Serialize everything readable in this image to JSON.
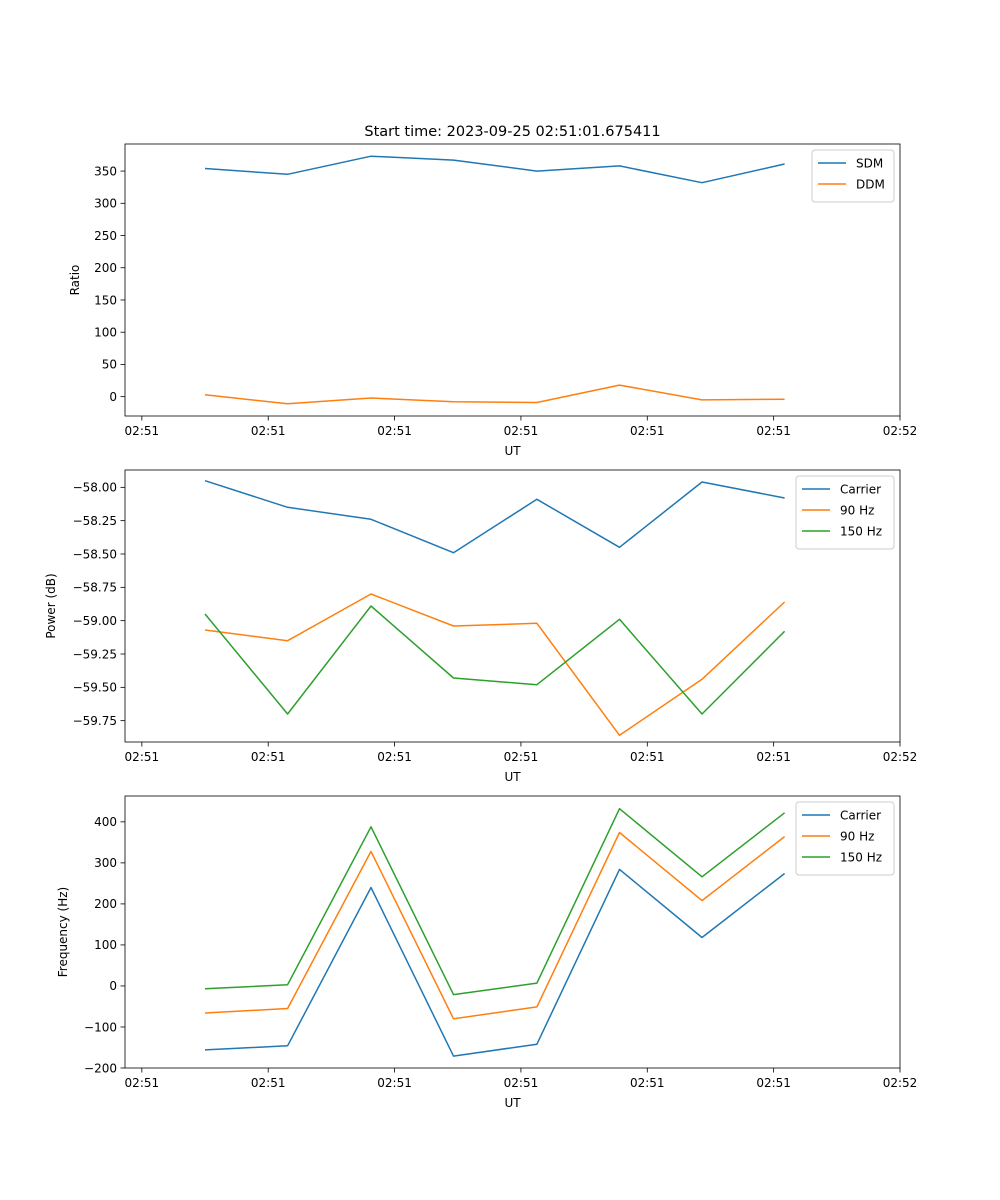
{
  "figure_title": "Start time: 2023-09-25 02:51:01.675411",
  "chart_data": [
    {
      "type": "line",
      "title": "Start time: 2023-09-25 02:51:01.675411",
      "xlabel": "UT",
      "ylabel": "Ratio",
      "xlim": [
        -0.2,
        9.0
      ],
      "ylim": [
        -30,
        392
      ],
      "xticks": [
        0,
        1.5,
        3,
        4.5,
        6,
        7.5,
        9
      ],
      "xtick_labels": [
        "02:51",
        "02:51",
        "02:51",
        "02:51",
        "02:51",
        "02:51",
        "02:52"
      ],
      "yticks": [
        0,
        50,
        100,
        150,
        200,
        250,
        300,
        350
      ],
      "ytick_labels": [
        "0",
        "50",
        "100",
        "150",
        "200",
        "250",
        "300",
        "350"
      ],
      "legend": "top-right",
      "x": [
        0.75,
        1.73,
        2.72,
        3.7,
        4.69,
        5.67,
        6.65,
        7.63
      ],
      "series": [
        {
          "name": "SDM",
          "color": "#1f77b4",
          "values": [
            354,
            345,
            373,
            367,
            350,
            358,
            332,
            361
          ]
        },
        {
          "name": "DDM",
          "color": "#ff7f0e",
          "values": [
            3,
            -11,
            -2,
            -8,
            -9,
            18,
            -5,
            -4
          ]
        }
      ]
    },
    {
      "type": "line",
      "title": "",
      "xlabel": "UT",
      "ylabel": "Power (dB)",
      "xlim": [
        -0.2,
        9.0
      ],
      "ylim": [
        -59.91,
        -57.87
      ],
      "xticks": [
        0,
        1.5,
        3,
        4.5,
        6,
        7.5,
        9
      ],
      "xtick_labels": [
        "02:51",
        "02:51",
        "02:51",
        "02:51",
        "02:51",
        "02:51",
        "02:52"
      ],
      "yticks": [
        -58.0,
        -58.25,
        -58.5,
        -58.75,
        -59.0,
        -59.25,
        -59.5,
        -59.75
      ],
      "ytick_labels": [
        "−58.00",
        "−58.25",
        "−58.50",
        "−58.75",
        "−59.00",
        "−59.25",
        "−59.50",
        "−59.75"
      ],
      "legend": "top-right",
      "x": [
        0.75,
        1.73,
        2.72,
        3.7,
        4.69,
        5.67,
        6.65,
        7.63
      ],
      "series": [
        {
          "name": "Carrier",
          "color": "#1f77b4",
          "values": [
            -57.95,
            -58.15,
            -58.24,
            -58.49,
            -58.09,
            -58.45,
            -57.96,
            -58.08
          ]
        },
        {
          "name": "90 Hz",
          "color": "#ff7f0e",
          "values": [
            -59.07,
            -59.15,
            -58.8,
            -59.04,
            -59.02,
            -59.86,
            -59.44,
            -58.86
          ]
        },
        {
          "name": "150 Hz",
          "color": "#2ca02c",
          "values": [
            -58.95,
            -59.7,
            -58.89,
            -59.43,
            -59.48,
            -58.99,
            -59.7,
            -59.08
          ]
        }
      ]
    },
    {
      "type": "line",
      "title": "",
      "xlabel": "UT",
      "ylabel": "Frequency (Hz)",
      "xlim": [
        -0.2,
        9.0
      ],
      "ylim": [
        -200,
        463
      ],
      "xticks": [
        0,
        1.5,
        3,
        4.5,
        6,
        7.5,
        9
      ],
      "xtick_labels": [
        "02:51",
        "02:51",
        "02:51",
        "02:51",
        "02:51",
        "02:51",
        "02:52"
      ],
      "yticks": [
        -200,
        -100,
        0,
        100,
        200,
        300,
        400
      ],
      "ytick_labels": [
        "−200",
        "−100",
        "0",
        "100",
        "200",
        "300",
        "400"
      ],
      "legend": "top-right",
      "x": [
        0.75,
        1.73,
        2.72,
        3.7,
        4.69,
        5.67,
        6.65,
        7.63
      ],
      "series": [
        {
          "name": "Carrier",
          "color": "#1f77b4",
          "values": [
            -156,
            -146,
            240,
            -171,
            -142,
            284,
            118,
            274
          ]
        },
        {
          "name": "90 Hz",
          "color": "#ff7f0e",
          "values": [
            -66,
            -55,
            328,
            -80,
            -51,
            374,
            208,
            364
          ]
        },
        {
          "name": "150 Hz",
          "color": "#2ca02c",
          "values": [
            -7,
            3,
            388,
            -21,
            7,
            432,
            266,
            422
          ]
        }
      ]
    }
  ]
}
